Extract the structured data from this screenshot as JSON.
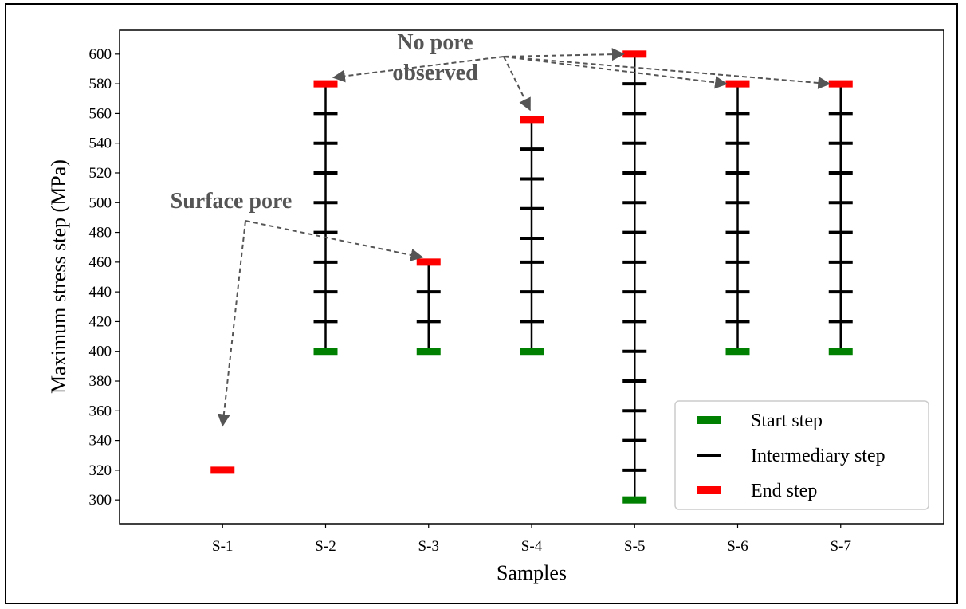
{
  "chart_data": {
    "type": "scatter",
    "title": "",
    "xlabel": "Samples",
    "ylabel": "Maximum stress step (MPa)",
    "categories": [
      "S-1",
      "S-2",
      "S-3",
      "S-4",
      "S-5",
      "S-6",
      "S-7"
    ],
    "yticks": [
      300,
      320,
      340,
      360,
      380,
      400,
      420,
      440,
      460,
      480,
      500,
      520,
      540,
      560,
      580,
      600
    ],
    "ylim": [
      284,
      616
    ],
    "xlim": [
      0,
      8
    ],
    "grid": false,
    "legend_position": "bottom-right",
    "series": [
      {
        "name": "Start step",
        "color": "#008000",
        "points": [
          [
            "S-2",
            400
          ],
          [
            "S-3",
            400
          ],
          [
            "S-4",
            400
          ],
          [
            "S-5",
            300
          ],
          [
            "S-6",
            400
          ],
          [
            "S-7",
            400
          ]
        ]
      },
      {
        "name": "Intermediary step",
        "color": "#000000",
        "points": [
          [
            "S-2",
            420
          ],
          [
            "S-2",
            440
          ],
          [
            "S-2",
            460
          ],
          [
            "S-2",
            480
          ],
          [
            "S-2",
            500
          ],
          [
            "S-2",
            520
          ],
          [
            "S-2",
            540
          ],
          [
            "S-2",
            560
          ],
          [
            "S-3",
            420
          ],
          [
            "S-3",
            440
          ],
          [
            "S-4",
            420
          ],
          [
            "S-4",
            440
          ],
          [
            "S-4",
            460
          ],
          [
            "S-4",
            476
          ],
          [
            "S-4",
            496
          ],
          [
            "S-4",
            516
          ],
          [
            "S-4",
            536
          ],
          [
            "S-5",
            320
          ],
          [
            "S-5",
            340
          ],
          [
            "S-5",
            360
          ],
          [
            "S-5",
            380
          ],
          [
            "S-5",
            400
          ],
          [
            "S-5",
            420
          ],
          [
            "S-5",
            440
          ],
          [
            "S-5",
            460
          ],
          [
            "S-5",
            480
          ],
          [
            "S-5",
            500
          ],
          [
            "S-5",
            520
          ],
          [
            "S-5",
            540
          ],
          [
            "S-5",
            560
          ],
          [
            "S-5",
            580
          ],
          [
            "S-6",
            420
          ],
          [
            "S-6",
            440
          ],
          [
            "S-6",
            460
          ],
          [
            "S-6",
            480
          ],
          [
            "S-6",
            500
          ],
          [
            "S-6",
            520
          ],
          [
            "S-6",
            540
          ],
          [
            "S-6",
            560
          ],
          [
            "S-7",
            420
          ],
          [
            "S-7",
            440
          ],
          [
            "S-7",
            460
          ],
          [
            "S-7",
            480
          ],
          [
            "S-7",
            500
          ],
          [
            "S-7",
            520
          ],
          [
            "S-7",
            540
          ],
          [
            "S-7",
            560
          ]
        ]
      },
      {
        "name": "End step",
        "color": "#ff0000",
        "points": [
          [
            "S-1",
            320
          ],
          [
            "S-2",
            580
          ],
          [
            "S-3",
            460
          ],
          [
            "S-4",
            556
          ],
          [
            "S-5",
            600
          ],
          [
            "S-6",
            580
          ],
          [
            "S-7",
            580
          ]
        ]
      }
    ],
    "vertical_lines": [
      {
        "sample": "S-2",
        "from": 400,
        "to": 580
      },
      {
        "sample": "S-3",
        "from": 400,
        "to": 460
      },
      {
        "sample": "S-4",
        "from": 400,
        "to": 556
      },
      {
        "sample": "S-5",
        "from": 300,
        "to": 600
      },
      {
        "sample": "S-6",
        "from": 400,
        "to": 580
      },
      {
        "sample": "S-7",
        "from": 400,
        "to": 580
      }
    ],
    "annotations": [
      {
        "text_lines": [
          "Surface pore"
        ],
        "targets": [
          [
            "S-1",
            350
          ],
          [
            "S-3",
            460
          ]
        ]
      },
      {
        "text_lines": [
          "No pore",
          "observed"
        ],
        "targets": [
          [
            "S-2",
            580
          ],
          [
            "S-4",
            556
          ],
          [
            "S-5",
            600
          ],
          [
            "S-6",
            580
          ],
          [
            "S-7",
            580
          ]
        ]
      }
    ]
  }
}
